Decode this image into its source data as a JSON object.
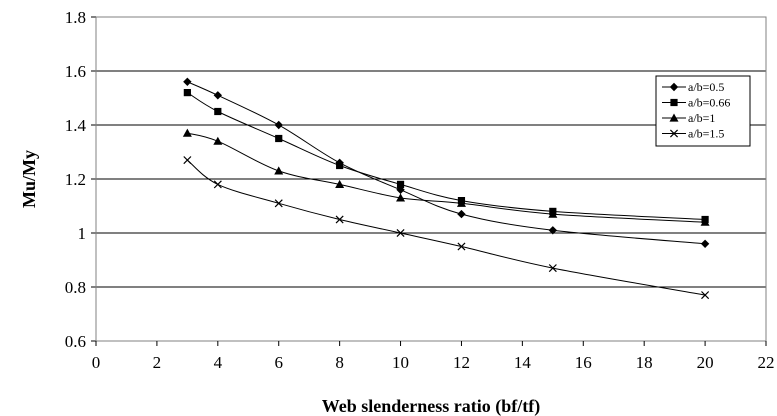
{
  "chart_data": {
    "type": "line",
    "title": "",
    "xlabel": "Web slenderness ratio (bf/tf)",
    "ylabel": "Mu/My",
    "xlim": [
      0,
      22
    ],
    "ylim": [
      0.6,
      1.8
    ],
    "x_ticks": [
      "0",
      "2",
      "4",
      "6",
      "8",
      "10",
      "12",
      "14",
      "16",
      "18",
      "20",
      "22"
    ],
    "y_ticks": [
      "0.6",
      "0.8",
      "1",
      "1.2",
      "1.4",
      "1.6",
      "1.8"
    ],
    "grid": "horizontal",
    "legend_position": "right",
    "x": [
      3,
      4,
      6,
      8,
      10,
      12,
      15,
      20
    ],
    "series": [
      {
        "name": "a/b=0.5",
        "marker": "diamond",
        "values": [
          1.56,
          1.51,
          1.4,
          1.26,
          1.16,
          1.07,
          1.01,
          0.96
        ]
      },
      {
        "name": "a/b=0.66",
        "marker": "square",
        "values": [
          1.52,
          1.45,
          1.35,
          1.25,
          1.18,
          1.12,
          1.08,
          1.05
        ]
      },
      {
        "name": "a/b=1",
        "marker": "triangle",
        "values": [
          1.37,
          1.34,
          1.23,
          1.18,
          1.13,
          1.11,
          1.07,
          1.04
        ]
      },
      {
        "name": "a/b=1.5",
        "marker": "x",
        "values": [
          1.27,
          1.18,
          1.11,
          1.05,
          1.0,
          0.95,
          0.87,
          0.77
        ]
      }
    ]
  }
}
